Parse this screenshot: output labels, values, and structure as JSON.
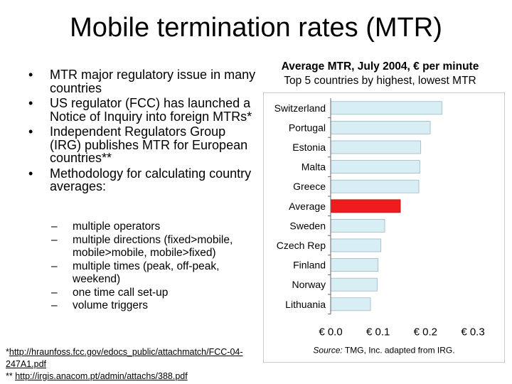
{
  "slide": {
    "title": "Mobile termination rates (MTR)",
    "bullets": [
      "MTR major regulatory issue in many countries",
      "US regulator (FCC) has launched a Notice of Inquiry into foreign MTRs*",
      "Independent Regulators Group (IRG) publishes MTR for European countries**",
      "Methodology for calculating country averages:"
    ],
    "sub_bullets": [
      "multiple operators",
      "multiple directions (fixed>mobile, mobile>mobile, mobile>fixed)",
      "multiple times (peak, off-peak, weekend)",
      "one time call set-up",
      "volume triggers"
    ],
    "footnotes": [
      {
        "prefix": "*",
        "link": "http://hraunfoss.fcc.gov/edocs_public/attachmatch/FCC-04-247A1.pdf"
      },
      {
        "prefix": "** ",
        "link": "http://irgis.anacom.pt/admin/attachs/388.pdf"
      }
    ]
  },
  "chart_data": {
    "type": "bar",
    "orientation": "horizontal",
    "title": "Average MTR, July 2004, € per minute",
    "subtitle": "Top 5 countries by highest, lowest MTR",
    "categories": [
      "Switzerland",
      "Portugal",
      "Estonia",
      "Malta",
      "Greece",
      "Average",
      "Sweden",
      "Czech Rep",
      "Finland",
      "Norway",
      "Lithuania"
    ],
    "values": [
      0.235,
      0.21,
      0.19,
      0.188,
      0.186,
      0.147,
      0.114,
      0.106,
      0.1,
      0.098,
      0.084
    ],
    "highlight": "Average",
    "xlim": [
      0,
      0.3
    ],
    "xticks": [
      "€ 0.0",
      "€ 0.1",
      "€ 0.2",
      "€ 0.3"
    ],
    "source_label": "Source:",
    "source_text": " TMG, Inc. adapted from IRG.",
    "colors": {
      "bar": "#d8eef5",
      "highlight": "#ee1c1c",
      "panel": "#ffffff",
      "panel_fill": "#efefef"
    }
  }
}
